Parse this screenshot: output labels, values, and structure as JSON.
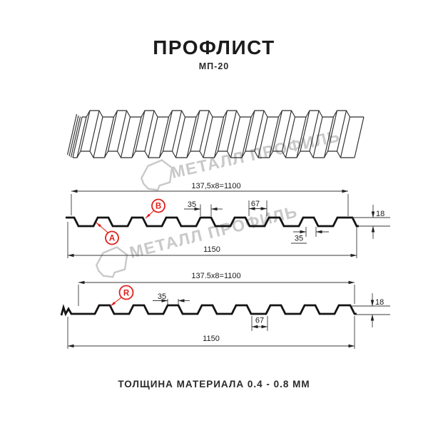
{
  "header": {
    "title": "ПРОФЛИСТ",
    "subtitle": "МП-20"
  },
  "watermark": {
    "text": "МЕТАЛЛ ПРОФИЛЬ",
    "color": "#c9c9c9"
  },
  "colors": {
    "line": "#141414",
    "dim": "#3a3a3a",
    "red": "#e0201a",
    "watermark": "#c9c9c9"
  },
  "drawing1": {
    "top_dim": "137,5x8=1100",
    "rib_width_dim": "35",
    "gap_dim": "67",
    "height_dim": "18",
    "bottom_rib_dim": "35",
    "overall_width_dim": "1150",
    "labels": {
      "a": "A",
      "b": "B"
    }
  },
  "drawing2": {
    "top_dim": "137.5x8=1100",
    "rib_width_dim": "35",
    "gap_dim": "67",
    "height_dim": "18",
    "overall_width_dim": "1150",
    "label": "R"
  },
  "footer": {
    "text": "ТОЛЩИНА МАТЕРИАЛА 0.4 - 0.8 ММ"
  }
}
